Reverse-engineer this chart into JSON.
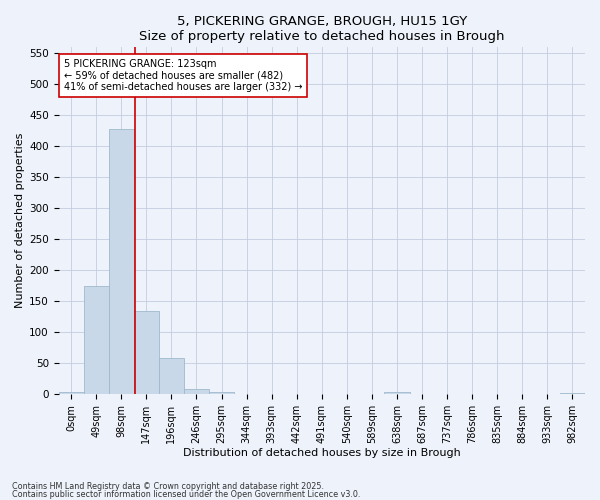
{
  "title1": "5, PICKERING GRANGE, BROUGH, HU15 1GY",
  "title2": "Size of property relative to detached houses in Brough",
  "xlabel": "Distribution of detached houses by size in Brough",
  "ylabel": "Number of detached properties",
  "bin_labels": [
    "0sqm",
    "49sqm",
    "98sqm",
    "147sqm",
    "196sqm",
    "246sqm",
    "295sqm",
    "344sqm",
    "393sqm",
    "442sqm",
    "491sqm",
    "540sqm",
    "589sqm",
    "638sqm",
    "687sqm",
    "737sqm",
    "786sqm",
    "835sqm",
    "884sqm",
    "933sqm",
    "982sqm"
  ],
  "bar_heights": [
    3,
    175,
    428,
    135,
    58,
    8,
    3,
    1,
    0,
    0,
    0,
    0,
    0,
    3,
    0,
    0,
    0,
    0,
    0,
    0,
    2
  ],
  "bar_color": "#c8d8e8",
  "bar_edgecolor": "#a0b8cc",
  "vline_x": 2.55,
  "vline_color": "#cc0000",
  "annotation_text": "5 PICKERING GRANGE: 123sqm\n← 59% of detached houses are smaller (482)\n41% of semi-detached houses are larger (332) →",
  "annotation_box_color": "#ffffff",
  "annotation_box_edgecolor": "#cc0000",
  "ylim": [
    0,
    560
  ],
  "yticks": [
    0,
    50,
    100,
    150,
    200,
    250,
    300,
    350,
    400,
    450,
    500,
    550
  ],
  "footer1": "Contains HM Land Registry data © Crown copyright and database right 2025.",
  "footer2": "Contains public sector information licensed under the Open Government Licence v3.0.",
  "bg_color": "#eef2fb",
  "grid_color": "#c4cce0",
  "title_fontsize": 9.5,
  "tick_fontsize": 7,
  "label_fontsize": 8,
  "annotation_fontsize": 7
}
